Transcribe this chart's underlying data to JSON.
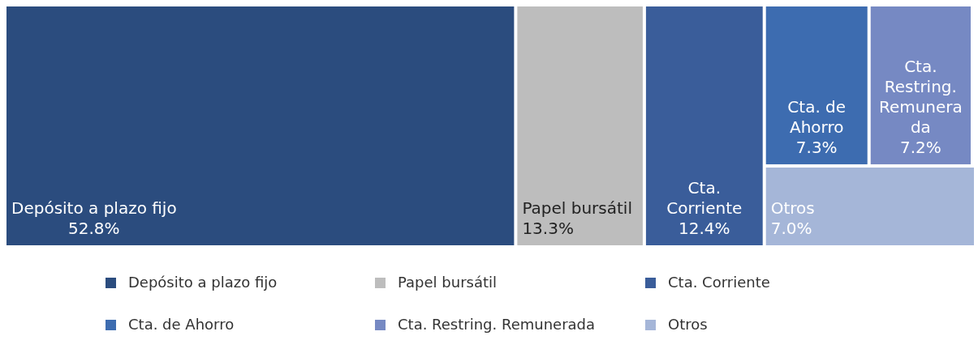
{
  "chart_data": {
    "type": "other",
    "categories": [
      "Depósito a plazo fijo",
      "Papel bursátil",
      "Cta. Corriente",
      "Cta. de Ahorro",
      "Cta. Restring. Remunerada",
      "Otros"
    ],
    "values": [
      52.8,
      13.3,
      12.4,
      7.3,
      7.2,
      7.0
    ],
    "value_labels": [
      "52.8%",
      "13.3%",
      "12.4%",
      "7.3%",
      "7.2%",
      "7.0%"
    ],
    "colors": [
      "#2b4c7e",
      "#bdbdbd",
      "#3a5d9a",
      "#3d6cb0",
      "#7689c3",
      "#a5b6d8"
    ]
  }
}
